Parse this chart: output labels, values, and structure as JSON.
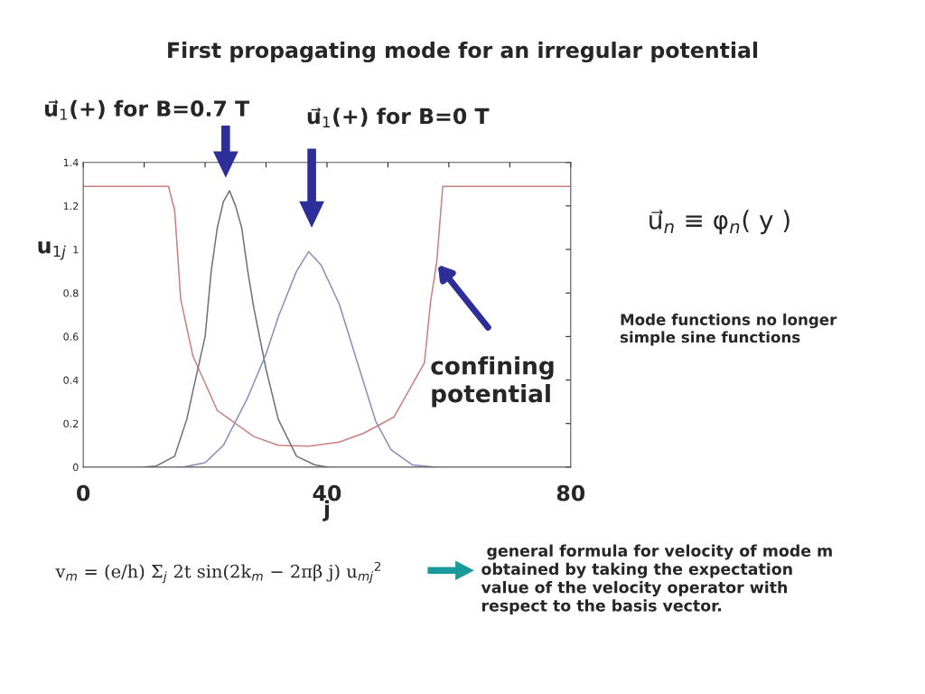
{
  "chart_data": {
    "type": "line",
    "title": "First propagating mode for an irregular potential",
    "xlabel": "j",
    "ylabel": "u$_{1j}$",
    "xlim": [
      0,
      80
    ],
    "xticks": [
      0,
      {
        "value": 10,
        "label": null
      },
      {
        "value": 20,
        "label": null
      },
      {
        "value": 30,
        "label": null
      },
      40,
      {
        "value": 50,
        "label": null
      },
      {
        "value": 60,
        "label": null
      },
      {
        "value": 70,
        "label": null
      },
      80
    ],
    "ylim": [
      0,
      1.4
    ],
    "yticks": [
      0,
      0.2,
      0.4,
      0.6,
      0.8,
      1,
      1.2,
      1.4
    ],
    "grid": false,
    "legend": false,
    "series": [
      {
        "color": "#cc7f7f",
        "x": [
          0,
          14,
          15,
          16,
          18,
          22,
          28,
          32,
          37,
          42,
          46,
          51,
          56,
          57,
          58,
          59,
          80
        ],
        "values": [
          1.29,
          1.29,
          1.18,
          0.77,
          0.51,
          0.26,
          0.14,
          0.1,
          0.096,
          0.115,
          0.155,
          0.23,
          0.48,
          0.76,
          0.94,
          1.29,
          1.29
        ]
      },
      {
        "color": "#707078",
        "x": [
          10,
          12,
          15,
          17,
          18,
          20,
          21,
          22,
          23,
          24,
          25,
          26,
          27,
          28,
          30,
          32,
          35,
          38,
          40
        ],
        "values": [
          0,
          0.005,
          0.05,
          0.22,
          0.35,
          0.6,
          0.9,
          1.1,
          1.22,
          1.27,
          1.2,
          1.1,
          0.9,
          0.73,
          0.45,
          0.22,
          0.05,
          0.01,
          0
        ]
      },
      {
        "color": "#8c8cbc",
        "x": [
          16.5,
          20,
          23,
          27,
          30,
          32,
          35,
          37,
          39,
          42,
          45,
          48,
          50.5,
          54,
          57.5
        ],
        "values": [
          0,
          0.02,
          0.1,
          0.32,
          0.52,
          0.69,
          0.9,
          0.99,
          0.93,
          0.75,
          0.48,
          0.21,
          0.08,
          0.01,
          0
        ]
      }
    ],
    "annotations": [
      "u⃗$_{1}$(+) for B=0.7 T",
      "u⃗$_{1}$(+) for B=0 T",
      {
        "text": "confining\npotential",
        "x": 58.2,
        "y": 0.93
      },
      "u⃗$_{n}$ ≡ φ$_{n}$( y )",
      "Mode functions no longer\nsimple sine functions",
      "v$_{m}$ = (e/h) Σ$_{j}$ 2t sin(2k$_{m}$ − 2πβ j) u$_{mj}$$^{2}$",
      " general formula for velocity of mode m\nobtained by taking the expectation\nvalue of the velocity operator with\nrespect to the basis vector."
    ]
  }
}
